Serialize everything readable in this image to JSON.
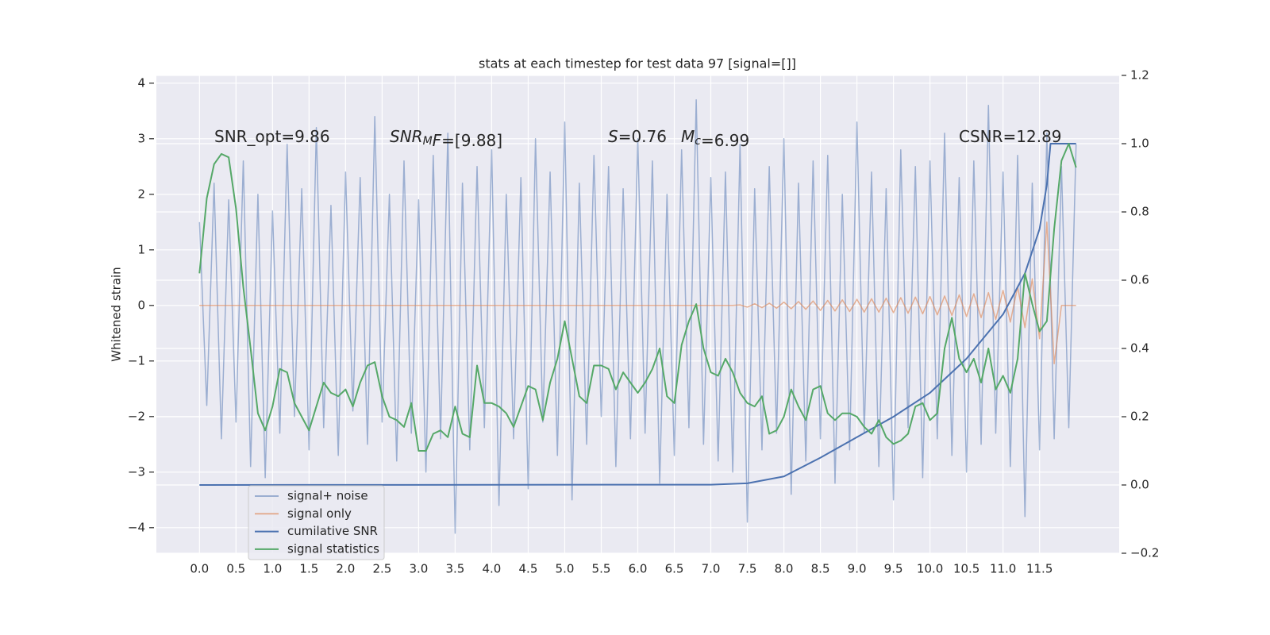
{
  "chart_data": {
    "type": "line",
    "title": "stats at each timestep for test data 97 [signal=[]]",
    "y_label": "Whitened strain",
    "annotations": [
      [
        {
          "text": "SNR_opt=9.86",
          "style": "normal"
        }
      ],
      [
        {
          "text": "SNR",
          "style": "italic"
        },
        {
          "text": "M",
          "style": "sub-italic"
        },
        {
          "text": "F",
          "style": "italic"
        },
        {
          "text": "=[9.88]",
          "style": "normal"
        }
      ],
      [
        {
          "text": "S",
          "style": "italic"
        },
        {
          "text": "=0.76",
          "style": "normal"
        }
      ],
      [
        {
          "text": "M",
          "style": "italic"
        },
        {
          "text": "c",
          "style": "sub-italic"
        },
        {
          "text": "=6.99",
          "style": "normal"
        }
      ],
      [
        {
          "text": "CSNR=12.89",
          "style": "normal"
        }
      ]
    ],
    "x": [
      0,
      0.1,
      0.2,
      0.3,
      0.4,
      0.5,
      0.6,
      0.7,
      0.8,
      0.9,
      1,
      1.1,
      1.2,
      1.3,
      1.4,
      1.5,
      1.6,
      1.7,
      1.8,
      1.9,
      2,
      2.1,
      2.2,
      2.3,
      2.4,
      2.5,
      2.6,
      2.7,
      2.8,
      2.9,
      3,
      3.1,
      3.2,
      3.3,
      3.4,
      3.5,
      3.6,
      3.7,
      3.8,
      3.9,
      4,
      4.1,
      4.2,
      4.3,
      4.4,
      4.5,
      4.6,
      4.7,
      4.8,
      4.9,
      5,
      5.1,
      5.2,
      5.3,
      5.4,
      5.5,
      5.6,
      5.7,
      5.8,
      5.9,
      6,
      6.1,
      6.2,
      6.3,
      6.4,
      6.5,
      6.6,
      6.7,
      6.8,
      6.9,
      7,
      7.1,
      7.2,
      7.3,
      7.4,
      7.5,
      7.6,
      7.7,
      7.8,
      7.9,
      8,
      8.1,
      8.2,
      8.3,
      8.4,
      8.5,
      8.6,
      8.7,
      8.8,
      8.9,
      9,
      9.1,
      9.2,
      9.3,
      9.4,
      9.5,
      9.6,
      9.7,
      9.8,
      9.9,
      10,
      10.1,
      10.2,
      10.3,
      10.4,
      10.5,
      10.6,
      10.7,
      10.8,
      10.9,
      11,
      11.1,
      11.2,
      11.3,
      11.4,
      11.5,
      11.6,
      11.7,
      11.8,
      11.9,
      12
    ],
    "series": [
      {
        "name": "signal+ noise",
        "color": "#4c72b0",
        "opacity": 0.5,
        "axis": "y",
        "values": [
          1.5,
          -1.8,
          2.2,
          -2.4,
          1.9,
          -2.1,
          2.6,
          -2.9,
          2.0,
          -3.1,
          1.7,
          -2.3,
          2.9,
          -2.0,
          2.1,
          -2.6,
          3.2,
          -2.2,
          1.8,
          -2.7,
          2.4,
          -1.9,
          2.3,
          -2.5,
          3.4,
          -2.1,
          2.0,
          -2.8,
          2.6,
          -2.3,
          1.9,
          -3.0,
          2.7,
          -2.4,
          3.1,
          -4.1,
          2.2,
          -2.6,
          2.5,
          -2.2,
          2.8,
          -3.6,
          2.0,
          -2.4,
          2.3,
          -3.3,
          3.0,
          -2.1,
          2.4,
          -2.7,
          3.3,
          -3.5,
          2.2,
          -2.5,
          2.7,
          -2.0,
          2.5,
          -2.9,
          2.1,
          -2.4,
          3.0,
          -2.3,
          2.6,
          -3.2,
          2.0,
          -2.7,
          2.8,
          -2.2,
          3.7,
          -2.5,
          2.3,
          -2.8,
          2.4,
          -3.0,
          2.9,
          -3.9,
          2.1,
          -2.6,
          2.5,
          -2.3,
          3.0,
          -3.4,
          2.2,
          -2.8,
          2.6,
          -2.4,
          2.7,
          -3.2,
          2.0,
          -2.6,
          3.3,
          -2.3,
          2.4,
          -2.9,
          2.1,
          -3.5,
          2.8,
          -2.2,
          2.5,
          -3.1,
          2.6,
          -2.4,
          3.1,
          -2.7,
          2.3,
          -3.0,
          2.6,
          -2.5,
          3.6,
          -2.3,
          2.4,
          -2.9,
          2.7,
          -3.8,
          2.2,
          -2.6,
          3.1,
          -2.4,
          2.5,
          -2.2,
          2.9
        ]
      },
      {
        "name": "signal only",
        "color": "#dd8452",
        "opacity": 0.6,
        "axis": "y",
        "values": [
          0,
          0,
          0,
          0,
          0,
          0,
          0,
          0,
          0,
          0,
          0,
          0,
          0,
          0,
          0,
          0,
          0,
          0,
          0,
          0,
          0,
          0,
          0,
          0,
          0,
          0,
          0,
          0,
          0,
          0,
          0,
          0,
          0,
          0,
          0,
          0,
          0,
          0,
          0,
          0,
          0,
          0,
          0,
          0,
          0,
          0,
          0,
          0,
          0,
          0,
          0,
          0,
          0,
          0,
          0,
          0,
          0,
          0,
          0,
          0,
          0,
          0,
          0,
          0,
          0,
          0,
          0,
          0,
          0,
          0,
          0,
          0,
          0,
          0,
          0.01,
          -0.03,
          0.03,
          -0.04,
          0.04,
          -0.05,
          0.06,
          -0.06,
          0.07,
          -0.07,
          0.08,
          -0.09,
          0.09,
          -0.1,
          0.1,
          -0.11,
          0.11,
          -0.12,
          0.12,
          -0.12,
          0.13,
          -0.13,
          0.14,
          -0.14,
          0.15,
          -0.15,
          0.16,
          -0.17,
          0.17,
          -0.18,
          0.19,
          -0.2,
          0.21,
          -0.22,
          0.23,
          -0.25,
          0.27,
          -0.3,
          0.34,
          -0.4,
          0.48,
          -0.6,
          1.5,
          -1.05,
          0,
          0,
          0
        ]
      },
      {
        "name": "cumilative SNR",
        "color": "#4c72b0",
        "opacity": 1,
        "axis": "y2",
        "x": [
          0,
          7,
          7.5,
          8,
          8.5,
          9,
          9.5,
          10,
          10.5,
          11,
          11.3,
          11.5,
          11.6,
          11.65,
          12
        ],
        "values": [
          0,
          0.001,
          0.005,
          0.025,
          0.08,
          0.14,
          0.2,
          0.27,
          0.37,
          0.5,
          0.62,
          0.75,
          0.88,
          1.0,
          1.0
        ]
      },
      {
        "name": "signal statistics",
        "color": "#55a868",
        "opacity": 1,
        "axis": "y2",
        "values": [
          0.62,
          0.84,
          0.94,
          0.97,
          0.96,
          0.81,
          0.58,
          0.4,
          0.21,
          0.16,
          0.23,
          0.34,
          0.33,
          0.24,
          0.2,
          0.16,
          0.23,
          0.3,
          0.27,
          0.26,
          0.28,
          0.23,
          0.3,
          0.35,
          0.36,
          0.26,
          0.2,
          0.19,
          0.17,
          0.24,
          0.1,
          0.1,
          0.15,
          0.16,
          0.14,
          0.23,
          0.15,
          0.14,
          0.35,
          0.24,
          0.24,
          0.23,
          0.21,
          0.17,
          0.23,
          0.29,
          0.28,
          0.19,
          0.3,
          0.37,
          0.48,
          0.37,
          0.26,
          0.24,
          0.35,
          0.35,
          0.34,
          0.28,
          0.33,
          0.3,
          0.27,
          0.3,
          0.34,
          0.4,
          0.26,
          0.24,
          0.41,
          0.48,
          0.53,
          0.4,
          0.33,
          0.32,
          0.37,
          0.33,
          0.27,
          0.24,
          0.23,
          0.26,
          0.15,
          0.16,
          0.2,
          0.28,
          0.23,
          0.19,
          0.28,
          0.29,
          0.21,
          0.19,
          0.21,
          0.21,
          0.2,
          0.17,
          0.15,
          0.19,
          0.14,
          0.12,
          0.13,
          0.15,
          0.23,
          0.24,
          0.19,
          0.21,
          0.4,
          0.49,
          0.37,
          0.33,
          0.37,
          0.3,
          0.4,
          0.28,
          0.32,
          0.27,
          0.37,
          0.62,
          0.53,
          0.45,
          0.48,
          0.75,
          0.95,
          1.0,
          0.93
        ]
      }
    ],
    "xlim": [
      -0.59,
      12.59
    ],
    "xticks": [
      {
        "value": 0,
        "label": "0.0"
      },
      0.5,
      {
        "value": 1,
        "label": "1.0"
      },
      1.5,
      {
        "value": 2,
        "label": "2.0"
      },
      2.5,
      {
        "value": 3,
        "label": "3.0"
      },
      3.5,
      {
        "value": 4,
        "label": "4.0"
      },
      4.5,
      {
        "value": 5,
        "label": "5.0"
      },
      5.5,
      {
        "value": 6,
        "label": "6.0"
      },
      6.5,
      {
        "value": 7,
        "label": "7.0"
      },
      7.5,
      {
        "value": 8,
        "label": "8.0"
      },
      8.5,
      {
        "value": 9,
        "label": "9.0"
      },
      9.5,
      {
        "value": 10,
        "label": "10.0"
      },
      10.5,
      {
        "value": 11,
        "label": "11.0"
      },
      11.5
    ],
    "ylim": [
      -4.46,
      4.14
    ],
    "yticks": [
      {
        "value": -4,
        "label": "−4"
      },
      {
        "value": -3,
        "label": "−3"
      },
      {
        "value": -2,
        "label": "−2"
      },
      {
        "value": -1,
        "label": "−1"
      },
      0,
      1,
      2,
      3,
      4
    ],
    "y2lim": [
      -0.2,
      1.2
    ],
    "y2ticks": [
      {
        "value": -0.2,
        "label": "−0.2"
      },
      {
        "value": 0,
        "label": "0.0"
      },
      0.2,
      0.4,
      0.6,
      0.8,
      {
        "value": 1,
        "label": "1.0"
      },
      1.2
    ],
    "grid": true,
    "legend": "lower left",
    "background": "#eaeaf2"
  }
}
